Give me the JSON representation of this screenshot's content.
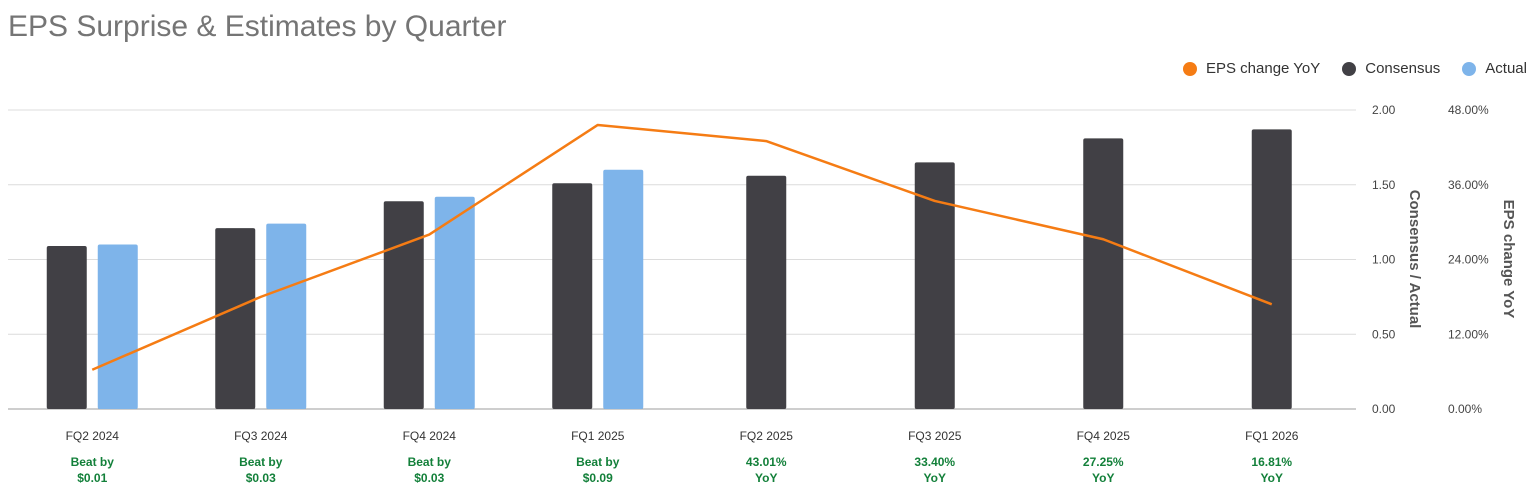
{
  "title": "EPS Surprise & Estimates by Quarter",
  "legend": [
    {
      "label": "EPS change YoY",
      "color": "#F57C14"
    },
    {
      "label": "Consensus",
      "color": "#414045"
    },
    {
      "label": "Actual",
      "color": "#7EB4EA"
    }
  ],
  "chart_data": {
    "type": "bar",
    "title": "EPS Surprise & Estimates by Quarter",
    "categories": [
      "FQ2 2024",
      "FQ3 2024",
      "FQ4 2024",
      "FQ1 2025",
      "FQ2 2025",
      "FQ3 2025",
      "FQ4 2025",
      "FQ1 2026"
    ],
    "series": [
      {
        "name": "Consensus",
        "type": "bar",
        "axis": "left",
        "color": "#414045",
        "values": [
          1.09,
          1.21,
          1.39,
          1.51,
          1.56,
          1.65,
          1.81,
          1.87
        ]
      },
      {
        "name": "Actual",
        "type": "bar",
        "axis": "left",
        "color": "#7EB4EA",
        "values": [
          1.1,
          1.24,
          1.42,
          1.6,
          null,
          null,
          null,
          null
        ]
      },
      {
        "name": "EPS change YoY",
        "type": "line",
        "axis": "right",
        "color": "#F57C14",
        "values": [
          6.3,
          18.0,
          28.0,
          45.6,
          43.01,
          33.4,
          27.25,
          16.81
        ]
      }
    ],
    "y_left": {
      "label": "Consensus / Actual",
      "range": [
        0,
        2
      ],
      "ticks": [
        "0.00",
        "0.50",
        "1.00",
        "1.50",
        "2.00"
      ]
    },
    "y_right": {
      "label": "EPS change YoY",
      "range": [
        0,
        48
      ],
      "ticks": [
        "0.00%",
        "12.00%",
        "24.00%",
        "36.00%",
        "48.00%"
      ]
    },
    "grid": true,
    "legend_position": "top-right",
    "annotations": [
      {
        "line1": "Beat by",
        "line2": "$0.01"
      },
      {
        "line1": "Beat by",
        "line2": "$0.03"
      },
      {
        "line1": "Beat by",
        "line2": "$0.03"
      },
      {
        "line1": "Beat by",
        "line2": "$0.09"
      },
      {
        "line1": "43.01%",
        "line2": "YoY"
      },
      {
        "line1": "33.40%",
        "line2": "YoY"
      },
      {
        "line1": "27.25%",
        "line2": "YoY"
      },
      {
        "line1": "16.81%",
        "line2": "YoY"
      }
    ]
  }
}
